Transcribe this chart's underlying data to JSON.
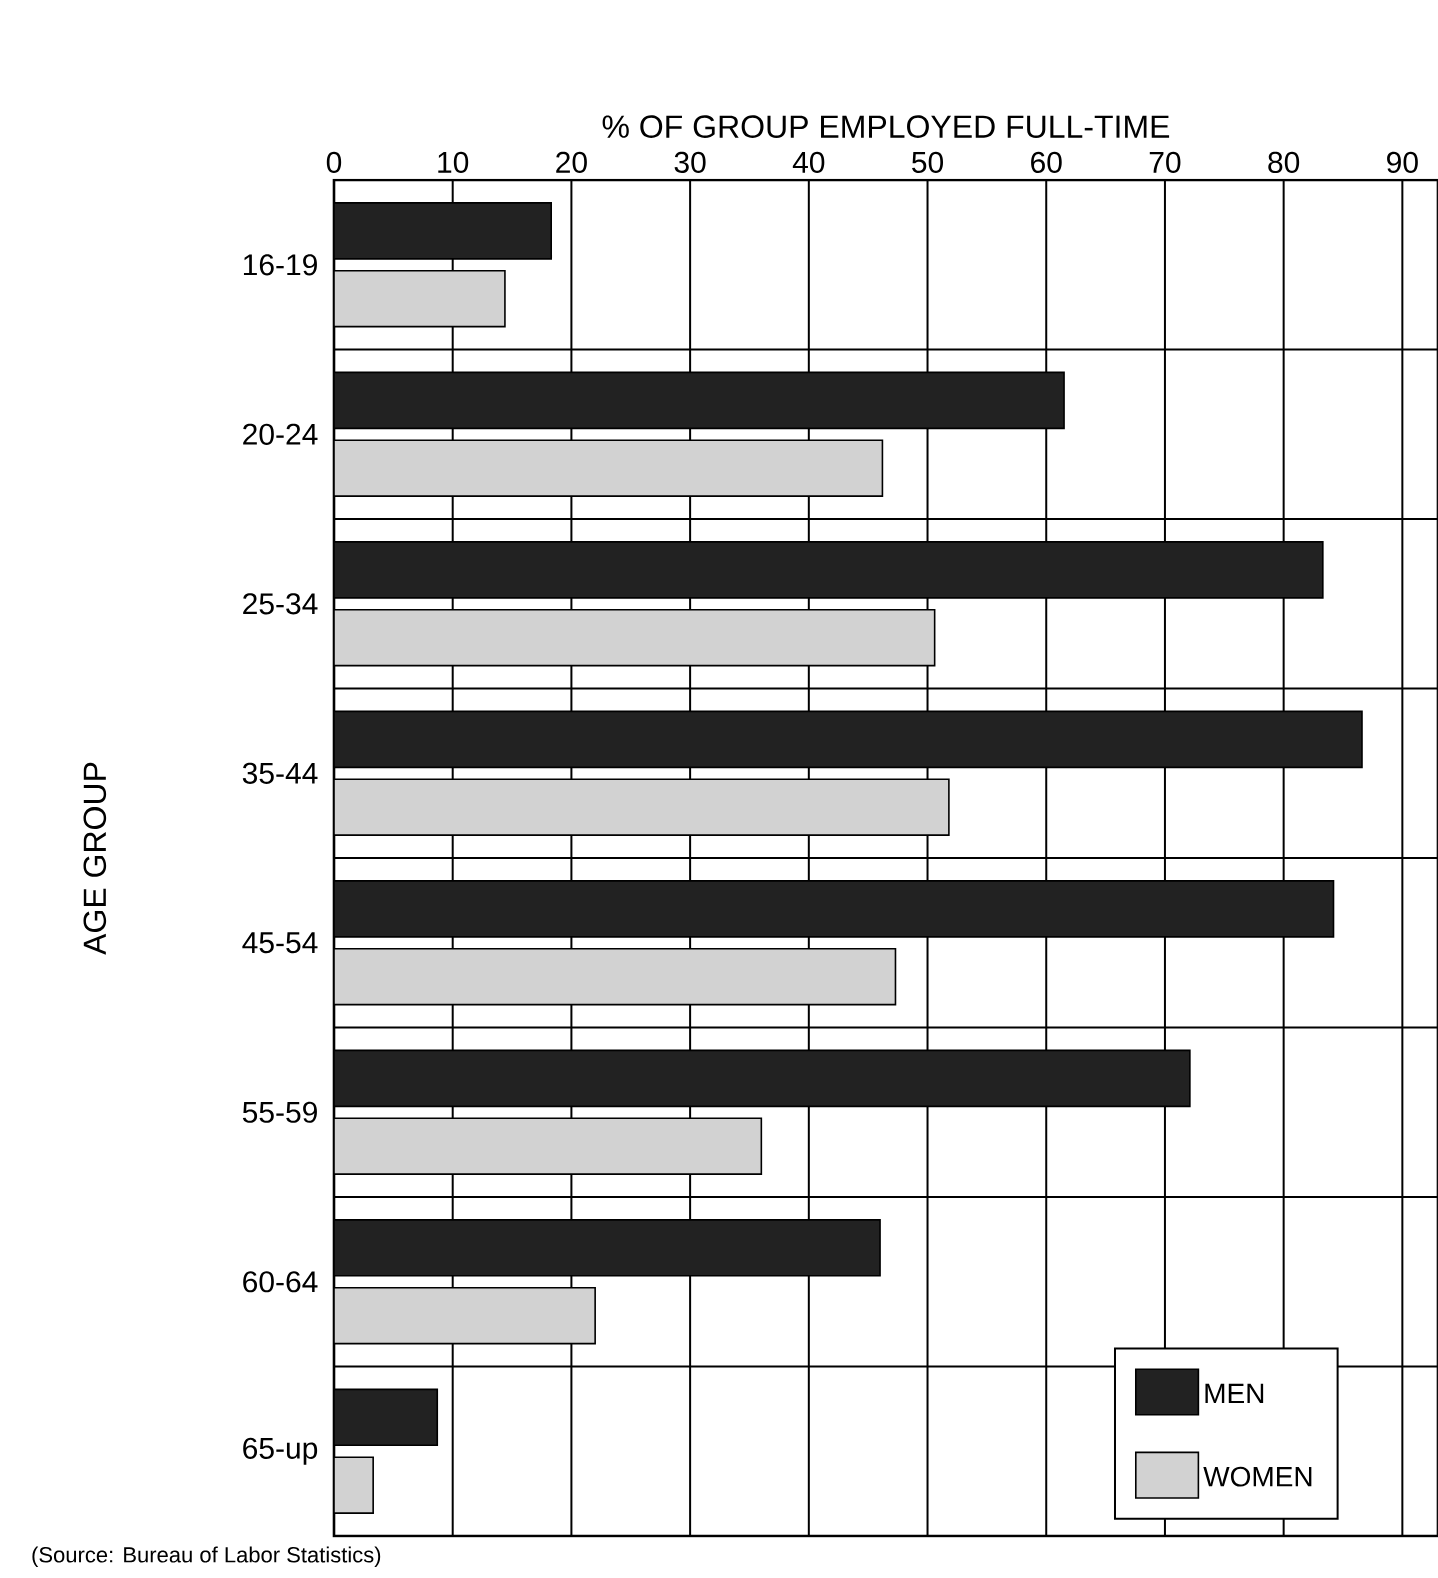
{
  "chart_data": {
    "type": "bar",
    "orientation": "horizontal",
    "xlabel": "% OF GROUP EMPLOYED FULL-TIME",
    "ylabel": "AGE GROUP",
    "categories": [
      "16-19",
      "20-24",
      "25-34",
      "35-44",
      "45-54",
      "55-59",
      "60-64",
      "65-up"
    ],
    "series": [
      {
        "name": "MEN",
        "color": "#222222",
        "values": [
          18.3,
          61.5,
          83.3,
          86.6,
          84.2,
          72.1,
          46,
          8.7
        ]
      },
      {
        "name": "WOMEN",
        "color": "#d2d2d2",
        "values": [
          14.4,
          46.2,
          50.6,
          51.8,
          47.3,
          36,
          22,
          3.3
        ]
      }
    ],
    "xlim": [
      0,
      93
    ],
    "xticks": [
      0,
      10,
      20,
      30,
      40,
      50,
      60,
      70,
      80,
      90
    ],
    "grid": true,
    "legend": "bottom right",
    "annotations": [
      "(Source: Bureau of Labor Statistics)"
    ]
  }
}
